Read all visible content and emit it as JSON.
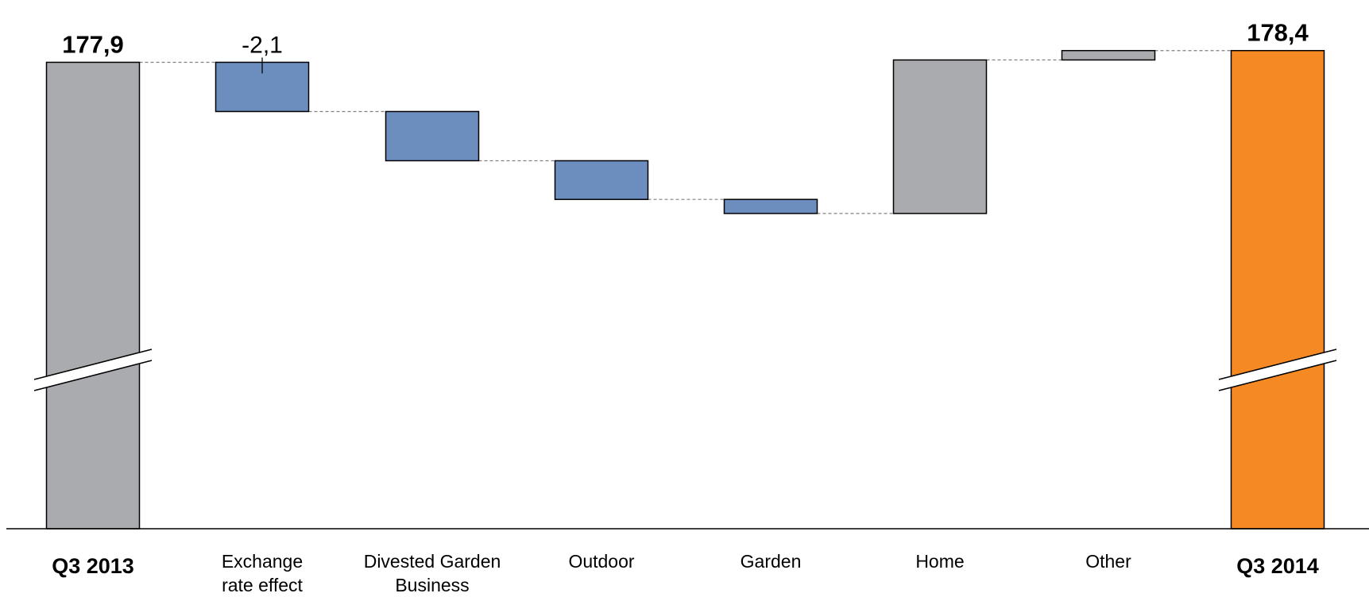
{
  "chart_data": {
    "type": "waterfall",
    "title": "",
    "ylim": [
      158,
      179
    ],
    "axis_break": true,
    "categories": [
      {
        "label": "Q3 2013",
        "bold": true,
        "kind": "total",
        "value": 177.9,
        "value_label": "177,9",
        "color": "#a9abae"
      },
      {
        "label": "Exchange\nrate effect",
        "bold": false,
        "kind": "delta",
        "value": -2.1,
        "value_label": "-2,1",
        "color": "#6c8ebf"
      },
      {
        "label": "Divested Garden\nBusiness",
        "bold": false,
        "kind": "delta",
        "value": -2.1,
        "value_label": "",
        "color": "#6c8ebf"
      },
      {
        "label": "Outdoor",
        "bold": false,
        "kind": "delta",
        "value": -1.65,
        "value_label": "",
        "color": "#6c8ebf"
      },
      {
        "label": "Garden",
        "bold": false,
        "kind": "delta",
        "value": -0.6,
        "value_label": "",
        "color": "#6c8ebf"
      },
      {
        "label": "Home",
        "bold": false,
        "kind": "delta",
        "value": 6.55,
        "value_label": "",
        "color": "#a9abae"
      },
      {
        "label": "Other",
        "bold": false,
        "kind": "delta",
        "value": 0.4,
        "value_label": "",
        "color": "#a9abae"
      },
      {
        "label": "Q3 2014",
        "bold": true,
        "kind": "total",
        "value": 178.4,
        "value_label": "178,4",
        "color": "#f58a25"
      }
    ]
  }
}
